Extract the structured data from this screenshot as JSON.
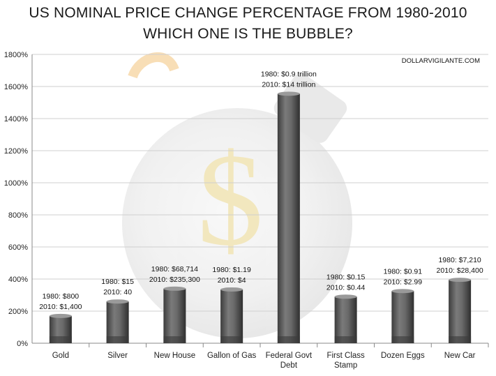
{
  "chart_data": {
    "type": "bar",
    "title": "US NOMINAL PRICE CHANGE PERCENTAGE FROM 1980-2010",
    "subtitle": "WHICH ONE IS THE BUBBLE?",
    "source": "DOLLARVIGILANTE.COM",
    "ylim": [
      0,
      1800
    ],
    "yticks": [
      "0%",
      "200%",
      "400%",
      "600%",
      "800%",
      "1000%",
      "1200%",
      "1400%",
      "1600%",
      "1800%"
    ],
    "grid": true,
    "categories": [
      [
        "Gold"
      ],
      [
        "Silver"
      ],
      [
        "New House"
      ],
      [
        "Gallon of Gas"
      ],
      [
        "Federal Govt",
        "Debt"
      ],
      [
        "First Class",
        "Stamp"
      ],
      [
        "Dozen Eggs"
      ],
      [
        "New Car"
      ]
    ],
    "values": [
      170,
      260,
      340,
      335,
      1555,
      290,
      325,
      395
    ],
    "annotations": [
      [
        "1980: $800",
        "2010: $1,400"
      ],
      [
        "1980: $15",
        "2010: 40"
      ],
      [
        "1980: $68,714",
        "2010: $235,300"
      ],
      [
        "1980: $1.19",
        "2010: $4"
      ],
      [
        "1980: $0.9 trillion",
        "2010: $14 trillion"
      ],
      [
        "1980: $0.15",
        "2010: $0.44"
      ],
      [
        "1980: $0.91",
        "2010: $2.99"
      ],
      [
        "1980: $7,210",
        "2010: $28,400"
      ]
    ],
    "colors": {
      "bar": "#6b6b6b",
      "bar_dark": "#3a3a3a",
      "grid": "#cfcfcf",
      "axis": "#888888"
    }
  }
}
